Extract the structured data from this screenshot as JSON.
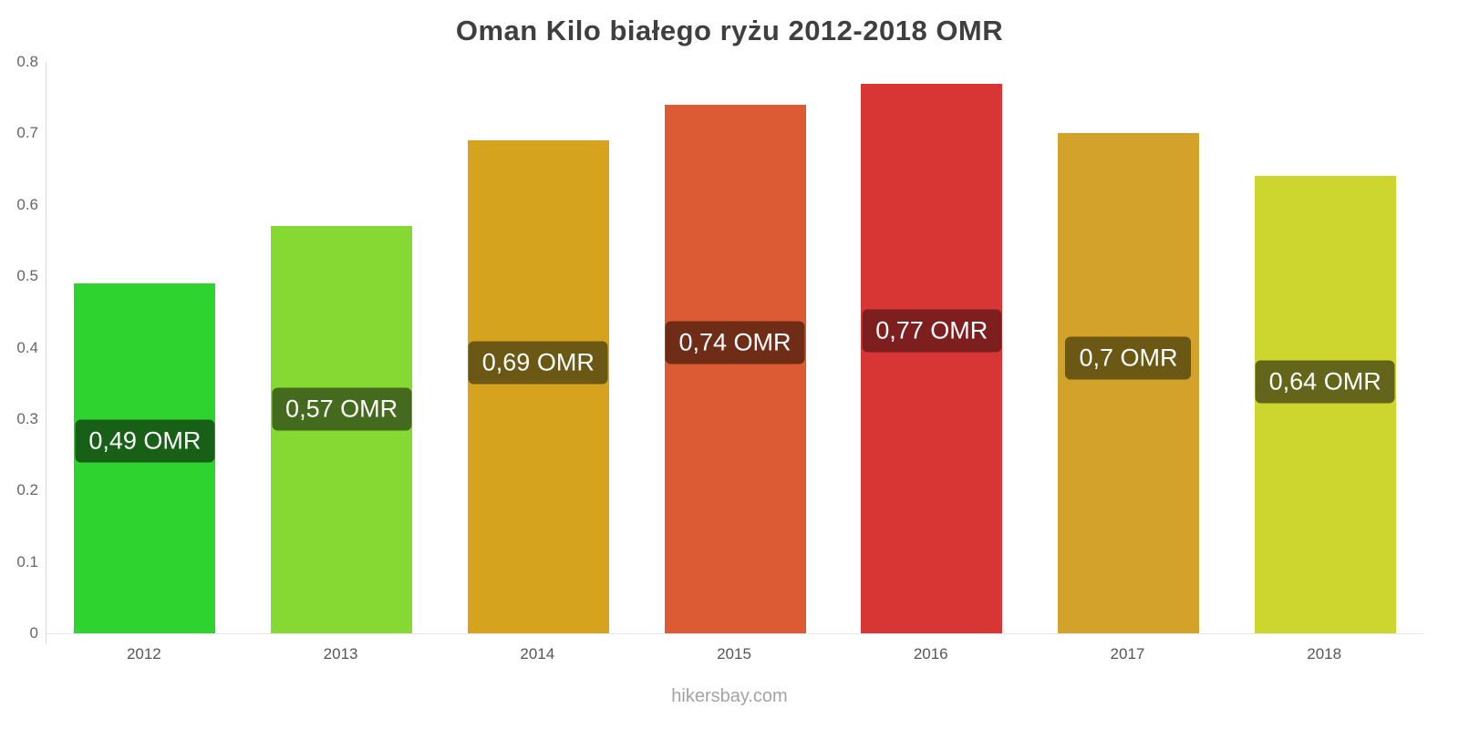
{
  "title": "Oman Kilo białego ryżu 2012-2018 OMR",
  "footer": "hikersbay.com",
  "chart_data": {
    "type": "bar",
    "title": "Oman Kilo białego ryżu 2012-2018 OMR",
    "categories": [
      "2012",
      "2013",
      "2014",
      "2015",
      "2016",
      "2017",
      "2018"
    ],
    "values": [
      0.49,
      0.57,
      0.69,
      0.74,
      0.77,
      0.7,
      0.64
    ],
    "value_labels": [
      "0,49 OMR",
      "0,57 OMR",
      "0,69 OMR",
      "0,74 OMR",
      "0,77 OMR",
      "0,7 OMR",
      "0,64 OMR"
    ],
    "bar_colors": [
      "#2FD32F",
      "#86D832",
      "#D6A31F",
      "#DC5B35",
      "#D83535",
      "#D2A22A",
      "#CDD62F"
    ],
    "label_bg_colors": [
      "#186018",
      "#446A1D",
      "#6A5814",
      "#6F2D18",
      "#7D1F1F",
      "#6A5814",
      "#63661A"
    ],
    "xlabel": "",
    "ylabel": "",
    "ylim": [
      0,
      0.8
    ],
    "yticks": [
      0,
      0.1,
      0.2,
      0.3,
      0.4,
      0.5,
      0.6,
      0.7,
      0.8
    ],
    "ytick_labels": [
      "0",
      "0.1",
      "0.2",
      "0.3",
      "0.4",
      "0.5",
      "0.6",
      "0.7",
      "0.8"
    ],
    "grid": false,
    "legend": false,
    "currency": "OMR"
  }
}
